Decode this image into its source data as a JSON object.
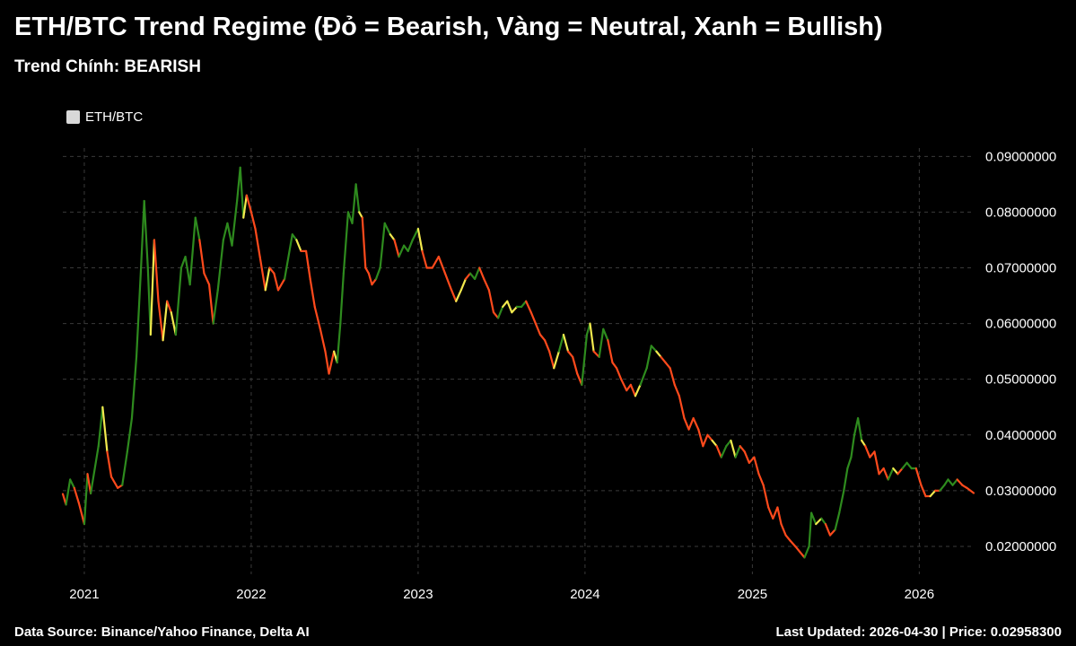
{
  "header": {
    "title": "ETH/BTC Trend Regime (Đỏ = Bearish, Vàng = Neutral, Xanh = Bullish)",
    "subtitle": "Trend Chính: BEARISH"
  },
  "legend": {
    "label": "ETH/BTC",
    "color": "#d8d8d8"
  },
  "footer": {
    "source": "Data Source: Binance/Yahoo Finance, Delta AI",
    "updated": "Last Updated: 2026-04-30 | Price: 0.02958300"
  },
  "colors": {
    "bearish": "#ff4a1c",
    "neutral": "#f2e94e",
    "bullish": "#2e8b1e",
    "grid": "#3a3a3a",
    "background": "#000000"
  },
  "chart_data": {
    "type": "line",
    "title": "ETH/BTC Trend Regime (Đỏ = Bearish, Vàng = Neutral, Xanh = Bullish)",
    "xlabel": "",
    "ylabel": "",
    "xlim": [
      "2020-11-15",
      "2026-04-30"
    ],
    "ylim": [
      0.015,
      0.0915
    ],
    "grid": true,
    "legend_position": "top-left",
    "x_ticks": [
      "2021",
      "2022",
      "2023",
      "2024",
      "2025",
      "2026"
    ],
    "y_ticks": [
      "0.02000000",
      "0.03000000",
      "0.04000000",
      "0.05000000",
      "0.06000000",
      "0.07000000",
      "0.08000000",
      "0.09000000"
    ],
    "series": [
      {
        "name": "ETH/BTC",
        "points": [
          [
            "2020-11-15",
            0.0294,
            "bearish"
          ],
          [
            "2020-11-22",
            0.0275,
            "bearish"
          ],
          [
            "2020-12-01",
            0.032,
            "bullish"
          ],
          [
            "2020-12-10",
            0.0305,
            "bullish"
          ],
          [
            "2020-12-20",
            0.0278,
            "bearish"
          ],
          [
            "2021-01-01",
            0.024,
            "bearish"
          ],
          [
            "2021-01-08",
            0.033,
            "bullish"
          ],
          [
            "2021-01-15",
            0.0295,
            "bearish"
          ],
          [
            "2021-02-01",
            0.038,
            "bullish"
          ],
          [
            "2021-02-10",
            0.045,
            "bullish"
          ],
          [
            "2021-02-20",
            0.037,
            "neutral"
          ],
          [
            "2021-03-01",
            0.0325,
            "bearish"
          ],
          [
            "2021-03-15",
            0.0305,
            "bearish"
          ],
          [
            "2021-03-25",
            0.031,
            "bearish"
          ],
          [
            "2021-04-05",
            0.037,
            "bullish"
          ],
          [
            "2021-04-15",
            0.043,
            "bullish"
          ],
          [
            "2021-04-25",
            0.054,
            "bullish"
          ],
          [
            "2021-05-05",
            0.07,
            "bullish"
          ],
          [
            "2021-05-12",
            0.082,
            "bullish"
          ],
          [
            "2021-05-20",
            0.07,
            "bullish"
          ],
          [
            "2021-05-26",
            0.058,
            "bullish"
          ],
          [
            "2021-06-03",
            0.075,
            "neutral"
          ],
          [
            "2021-06-12",
            0.064,
            "bearish"
          ],
          [
            "2021-06-22",
            0.057,
            "bearish"
          ],
          [
            "2021-07-01",
            0.064,
            "neutral"
          ],
          [
            "2021-07-10",
            0.062,
            "bearish"
          ],
          [
            "2021-07-20",
            0.058,
            "neutral"
          ],
          [
            "2021-08-01",
            0.07,
            "bullish"
          ],
          [
            "2021-08-10",
            0.072,
            "bullish"
          ],
          [
            "2021-08-20",
            0.067,
            "bullish"
          ],
          [
            "2021-09-01",
            0.079,
            "bullish"
          ],
          [
            "2021-09-10",
            0.075,
            "bullish"
          ],
          [
            "2021-09-20",
            0.069,
            "bearish"
          ],
          [
            "2021-10-01",
            0.067,
            "bearish"
          ],
          [
            "2021-10-10",
            0.06,
            "bearish"
          ],
          [
            "2021-10-20",
            0.066,
            "bullish"
          ],
          [
            "2021-11-01",
            0.075,
            "bullish"
          ],
          [
            "2021-11-10",
            0.078,
            "bullish"
          ],
          [
            "2021-11-20",
            0.074,
            "bullish"
          ],
          [
            "2021-12-01",
            0.082,
            "bullish"
          ],
          [
            "2021-12-08",
            0.088,
            "bullish"
          ],
          [
            "2021-12-15",
            0.079,
            "bullish"
          ],
          [
            "2021-12-22",
            0.083,
            "neutral"
          ],
          [
            "2022-01-01",
            0.08,
            "bearish"
          ],
          [
            "2022-01-10",
            0.077,
            "bearish"
          ],
          [
            "2022-01-20",
            0.072,
            "bearish"
          ],
          [
            "2022-02-01",
            0.066,
            "bearish"
          ],
          [
            "2022-02-10",
            0.07,
            "neutral"
          ],
          [
            "2022-02-20",
            0.069,
            "bearish"
          ],
          [
            "2022-03-01",
            0.066,
            "bearish"
          ],
          [
            "2022-03-15",
            0.068,
            "bearish"
          ],
          [
            "2022-04-01",
            0.076,
            "bullish"
          ],
          [
            "2022-04-10",
            0.075,
            "bullish"
          ],
          [
            "2022-04-20",
            0.073,
            "neutral"
          ],
          [
            "2022-05-01",
            0.073,
            "bearish"
          ],
          [
            "2022-05-10",
            0.068,
            "bearish"
          ],
          [
            "2022-05-20",
            0.063,
            "bearish"
          ],
          [
            "2022-06-01",
            0.059,
            "bearish"
          ],
          [
            "2022-06-12",
            0.055,
            "bearish"
          ],
          [
            "2022-06-20",
            0.051,
            "bearish"
          ],
          [
            "2022-07-01",
            0.055,
            "bearish"
          ],
          [
            "2022-07-08",
            0.053,
            "neutral"
          ],
          [
            "2022-07-15",
            0.06,
            "bullish"
          ],
          [
            "2022-07-22",
            0.069,
            "bullish"
          ],
          [
            "2022-08-01",
            0.08,
            "bullish"
          ],
          [
            "2022-08-10",
            0.078,
            "bullish"
          ],
          [
            "2022-08-18",
            0.085,
            "bullish"
          ],
          [
            "2022-08-25",
            0.08,
            "bullish"
          ],
          [
            "2022-09-01",
            0.079,
            "neutral"
          ],
          [
            "2022-09-08",
            0.07,
            "bearish"
          ],
          [
            "2022-09-15",
            0.069,
            "bearish"
          ],
          [
            "2022-09-22",
            0.067,
            "bearish"
          ],
          [
            "2022-10-01",
            0.068,
            "bearish"
          ],
          [
            "2022-10-10",
            0.07,
            "bullish"
          ],
          [
            "2022-10-20",
            0.078,
            "bullish"
          ],
          [
            "2022-11-01",
            0.076,
            "bullish"
          ],
          [
            "2022-11-10",
            0.075,
            "neutral"
          ],
          [
            "2022-11-20",
            0.072,
            "bearish"
          ],
          [
            "2022-12-01",
            0.074,
            "bullish"
          ],
          [
            "2022-12-10",
            0.073,
            "bullish"
          ],
          [
            "2022-12-20",
            0.075,
            "bullish"
          ],
          [
            "2023-01-01",
            0.077,
            "bullish"
          ],
          [
            "2023-01-10",
            0.073,
            "neutral"
          ],
          [
            "2023-01-20",
            0.07,
            "bearish"
          ],
          [
            "2023-02-01",
            0.07,
            "bearish"
          ],
          [
            "2023-02-15",
            0.072,
            "bearish"
          ],
          [
            "2023-03-01",
            0.069,
            "bearish"
          ],
          [
            "2023-03-15",
            0.066,
            "bearish"
          ],
          [
            "2023-03-25",
            0.064,
            "bearish"
          ],
          [
            "2023-04-05",
            0.066,
            "neutral"
          ],
          [
            "2023-04-15",
            0.068,
            "neutral"
          ],
          [
            "2023-04-25",
            0.069,
            "bearish"
          ],
          [
            "2023-05-05",
            0.068,
            "bullish"
          ],
          [
            "2023-05-15",
            0.07,
            "bullish"
          ],
          [
            "2023-05-25",
            0.068,
            "bearish"
          ],
          [
            "2023-06-05",
            0.066,
            "bearish"
          ],
          [
            "2023-06-15",
            0.062,
            "bearish"
          ],
          [
            "2023-06-25",
            0.061,
            "bearish"
          ],
          [
            "2023-07-05",
            0.063,
            "bullish"
          ],
          [
            "2023-07-15",
            0.064,
            "neutral"
          ],
          [
            "2023-07-25",
            0.062,
            "neutral"
          ],
          [
            "2023-08-05",
            0.063,
            "neutral"
          ],
          [
            "2023-08-15",
            0.063,
            "bullish"
          ],
          [
            "2023-08-25",
            0.064,
            "bullish"
          ],
          [
            "2023-09-05",
            0.062,
            "bearish"
          ],
          [
            "2023-09-15",
            0.06,
            "bearish"
          ],
          [
            "2023-09-25",
            0.058,
            "bearish"
          ],
          [
            "2023-10-05",
            0.057,
            "bearish"
          ],
          [
            "2023-10-15",
            0.055,
            "bearish"
          ],
          [
            "2023-10-25",
            0.052,
            "bearish"
          ],
          [
            "2023-11-05",
            0.055,
            "neutral"
          ],
          [
            "2023-11-15",
            0.058,
            "bullish"
          ],
          [
            "2023-11-25",
            0.055,
            "neutral"
          ],
          [
            "2023-12-05",
            0.054,
            "bearish"
          ],
          [
            "2023-12-15",
            0.051,
            "bearish"
          ],
          [
            "2023-12-25",
            0.049,
            "bearish"
          ],
          [
            "2024-01-05",
            0.058,
            "bullish"
          ],
          [
            "2024-01-12",
            0.06,
            "bullish"
          ],
          [
            "2024-01-20",
            0.055,
            "neutral"
          ],
          [
            "2024-02-01",
            0.054,
            "bearish"
          ],
          [
            "2024-02-10",
            0.059,
            "bullish"
          ],
          [
            "2024-02-20",
            0.057,
            "bullish"
          ],
          [
            "2024-03-01",
            0.053,
            "bearish"
          ],
          [
            "2024-03-10",
            0.052,
            "bearish"
          ],
          [
            "2024-03-20",
            0.05,
            "bearish"
          ],
          [
            "2024-04-01",
            0.048,
            "bearish"
          ],
          [
            "2024-04-10",
            0.049,
            "bearish"
          ],
          [
            "2024-04-20",
            0.047,
            "bearish"
          ],
          [
            "2024-05-01",
            0.049,
            "neutral"
          ],
          [
            "2024-05-15",
            0.052,
            "bullish"
          ],
          [
            "2024-05-25",
            0.056,
            "bullish"
          ],
          [
            "2024-06-05",
            0.055,
            "bullish"
          ],
          [
            "2024-06-15",
            0.054,
            "neutral"
          ],
          [
            "2024-06-25",
            0.053,
            "bearish"
          ],
          [
            "2024-07-05",
            0.052,
            "bearish"
          ],
          [
            "2024-07-15",
            0.049,
            "bearish"
          ],
          [
            "2024-07-25",
            0.047,
            "bearish"
          ],
          [
            "2024-08-05",
            0.043,
            "bearish"
          ],
          [
            "2024-08-15",
            0.041,
            "bearish"
          ],
          [
            "2024-08-25",
            0.043,
            "bearish"
          ],
          [
            "2024-09-05",
            0.041,
            "bearish"
          ],
          [
            "2024-09-15",
            0.038,
            "bearish"
          ],
          [
            "2024-09-25",
            0.04,
            "bearish"
          ],
          [
            "2024-10-05",
            0.039,
            "bearish"
          ],
          [
            "2024-10-15",
            0.038,
            "neutral"
          ],
          [
            "2024-10-25",
            0.036,
            "bearish"
          ],
          [
            "2024-11-05",
            0.038,
            "bullish"
          ],
          [
            "2024-11-15",
            0.039,
            "bullish"
          ],
          [
            "2024-11-25",
            0.036,
            "neutral"
          ],
          [
            "2024-12-05",
            0.038,
            "bullish"
          ],
          [
            "2024-12-15",
            0.037,
            "bearish"
          ],
          [
            "2024-12-25",
            0.035,
            "bearish"
          ],
          [
            "2025-01-05",
            0.036,
            "bearish"
          ],
          [
            "2025-01-15",
            0.033,
            "bearish"
          ],
          [
            "2025-01-25",
            0.031,
            "bearish"
          ],
          [
            "2025-02-05",
            0.027,
            "bearish"
          ],
          [
            "2025-02-15",
            0.025,
            "bearish"
          ],
          [
            "2025-02-25",
            0.027,
            "bearish"
          ],
          [
            "2025-03-05",
            0.024,
            "bearish"
          ],
          [
            "2025-03-15",
            0.022,
            "bearish"
          ],
          [
            "2025-03-25",
            0.021,
            "bearish"
          ],
          [
            "2025-04-05",
            0.02,
            "bearish"
          ],
          [
            "2025-04-15",
            0.019,
            "bearish"
          ],
          [
            "2025-04-25",
            0.018,
            "bearish"
          ],
          [
            "2025-05-05",
            0.02,
            "bullish"
          ],
          [
            "2025-05-10",
            0.026,
            "bullish"
          ],
          [
            "2025-05-20",
            0.024,
            "bullish"
          ],
          [
            "2025-06-01",
            0.025,
            "neutral"
          ],
          [
            "2025-06-10",
            0.024,
            "bullish"
          ],
          [
            "2025-06-20",
            0.022,
            "bearish"
          ],
          [
            "2025-07-01",
            0.023,
            "bearish"
          ],
          [
            "2025-07-10",
            0.026,
            "bullish"
          ],
          [
            "2025-07-20",
            0.03,
            "bullish"
          ],
          [
            "2025-07-28",
            0.034,
            "bullish"
          ],
          [
            "2025-08-05",
            0.036,
            "bullish"
          ],
          [
            "2025-08-12",
            0.04,
            "bullish"
          ],
          [
            "2025-08-20",
            0.043,
            "bullish"
          ],
          [
            "2025-08-28",
            0.039,
            "bullish"
          ],
          [
            "2025-09-05",
            0.038,
            "neutral"
          ],
          [
            "2025-09-15",
            0.036,
            "bearish"
          ],
          [
            "2025-09-25",
            0.037,
            "bearish"
          ],
          [
            "2025-10-05",
            0.033,
            "bearish"
          ],
          [
            "2025-10-15",
            0.034,
            "bearish"
          ],
          [
            "2025-10-25",
            0.032,
            "bearish"
          ],
          [
            "2025-11-05",
            0.034,
            "bullish"
          ],
          [
            "2025-11-15",
            0.033,
            "neutral"
          ],
          [
            "2025-11-25",
            0.034,
            "bearish"
          ],
          [
            "2025-12-05",
            0.035,
            "bullish"
          ],
          [
            "2025-12-15",
            0.034,
            "bullish"
          ],
          [
            "2025-12-25",
            0.034,
            "bullish"
          ],
          [
            "2026-01-05",
            0.031,
            "bearish"
          ],
          [
            "2026-01-15",
            0.029,
            "bearish"
          ],
          [
            "2026-01-25",
            0.029,
            "bearish"
          ],
          [
            "2026-02-05",
            0.03,
            "neutral"
          ],
          [
            "2026-02-15",
            0.03,
            "bearish"
          ],
          [
            "2026-02-25",
            0.031,
            "bullish"
          ],
          [
            "2026-03-05",
            0.032,
            "bullish"
          ],
          [
            "2026-03-15",
            0.031,
            "bullish"
          ],
          [
            "2026-03-25",
            0.032,
            "bullish"
          ],
          [
            "2026-04-05",
            0.031,
            "bearish"
          ],
          [
            "2026-04-15",
            0.0305,
            "bearish"
          ],
          [
            "2026-04-30",
            0.02958,
            "bearish"
          ]
        ]
      }
    ]
  }
}
